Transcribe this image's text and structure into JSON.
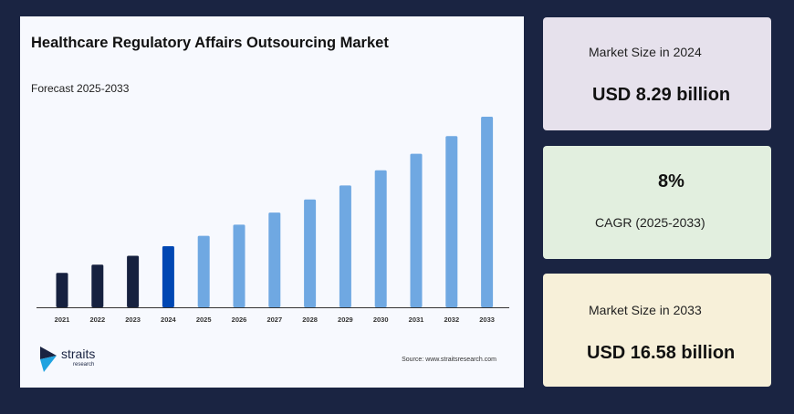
{
  "chart_data": {
    "type": "bar",
    "title": "Healthcare Regulatory Affairs Outsourcing Market",
    "subtitle": "Forecast 2025-2033",
    "categories": [
      "2021",
      "2022",
      "2023",
      "2024",
      "2025",
      "2026",
      "2027",
      "2028",
      "2029",
      "2030",
      "2031",
      "2032",
      "2033"
    ],
    "values": [
      6.58,
      7.11,
      7.68,
      8.29,
      8.95,
      9.67,
      10.44,
      11.28,
      12.18,
      13.15,
      14.21,
      15.34,
      16.58
    ],
    "unit": "USD billion",
    "colors": {
      "historical": "#16213f",
      "base_year": "#0047b3",
      "forecast": "#6fa8e2"
    },
    "grid": false,
    "legend": "none"
  },
  "source": "Source: www.straitsresearch.com",
  "logo": {
    "name": "straits",
    "sub": "research"
  },
  "cards": [
    {
      "label": "Market Size in 2024",
      "value": "USD 8.29 billion"
    },
    {
      "value": "8%",
      "label": "CAGR (2025-2033)"
    },
    {
      "label": "Market Size in 2033",
      "value": "USD 16.58 billion"
    }
  ]
}
